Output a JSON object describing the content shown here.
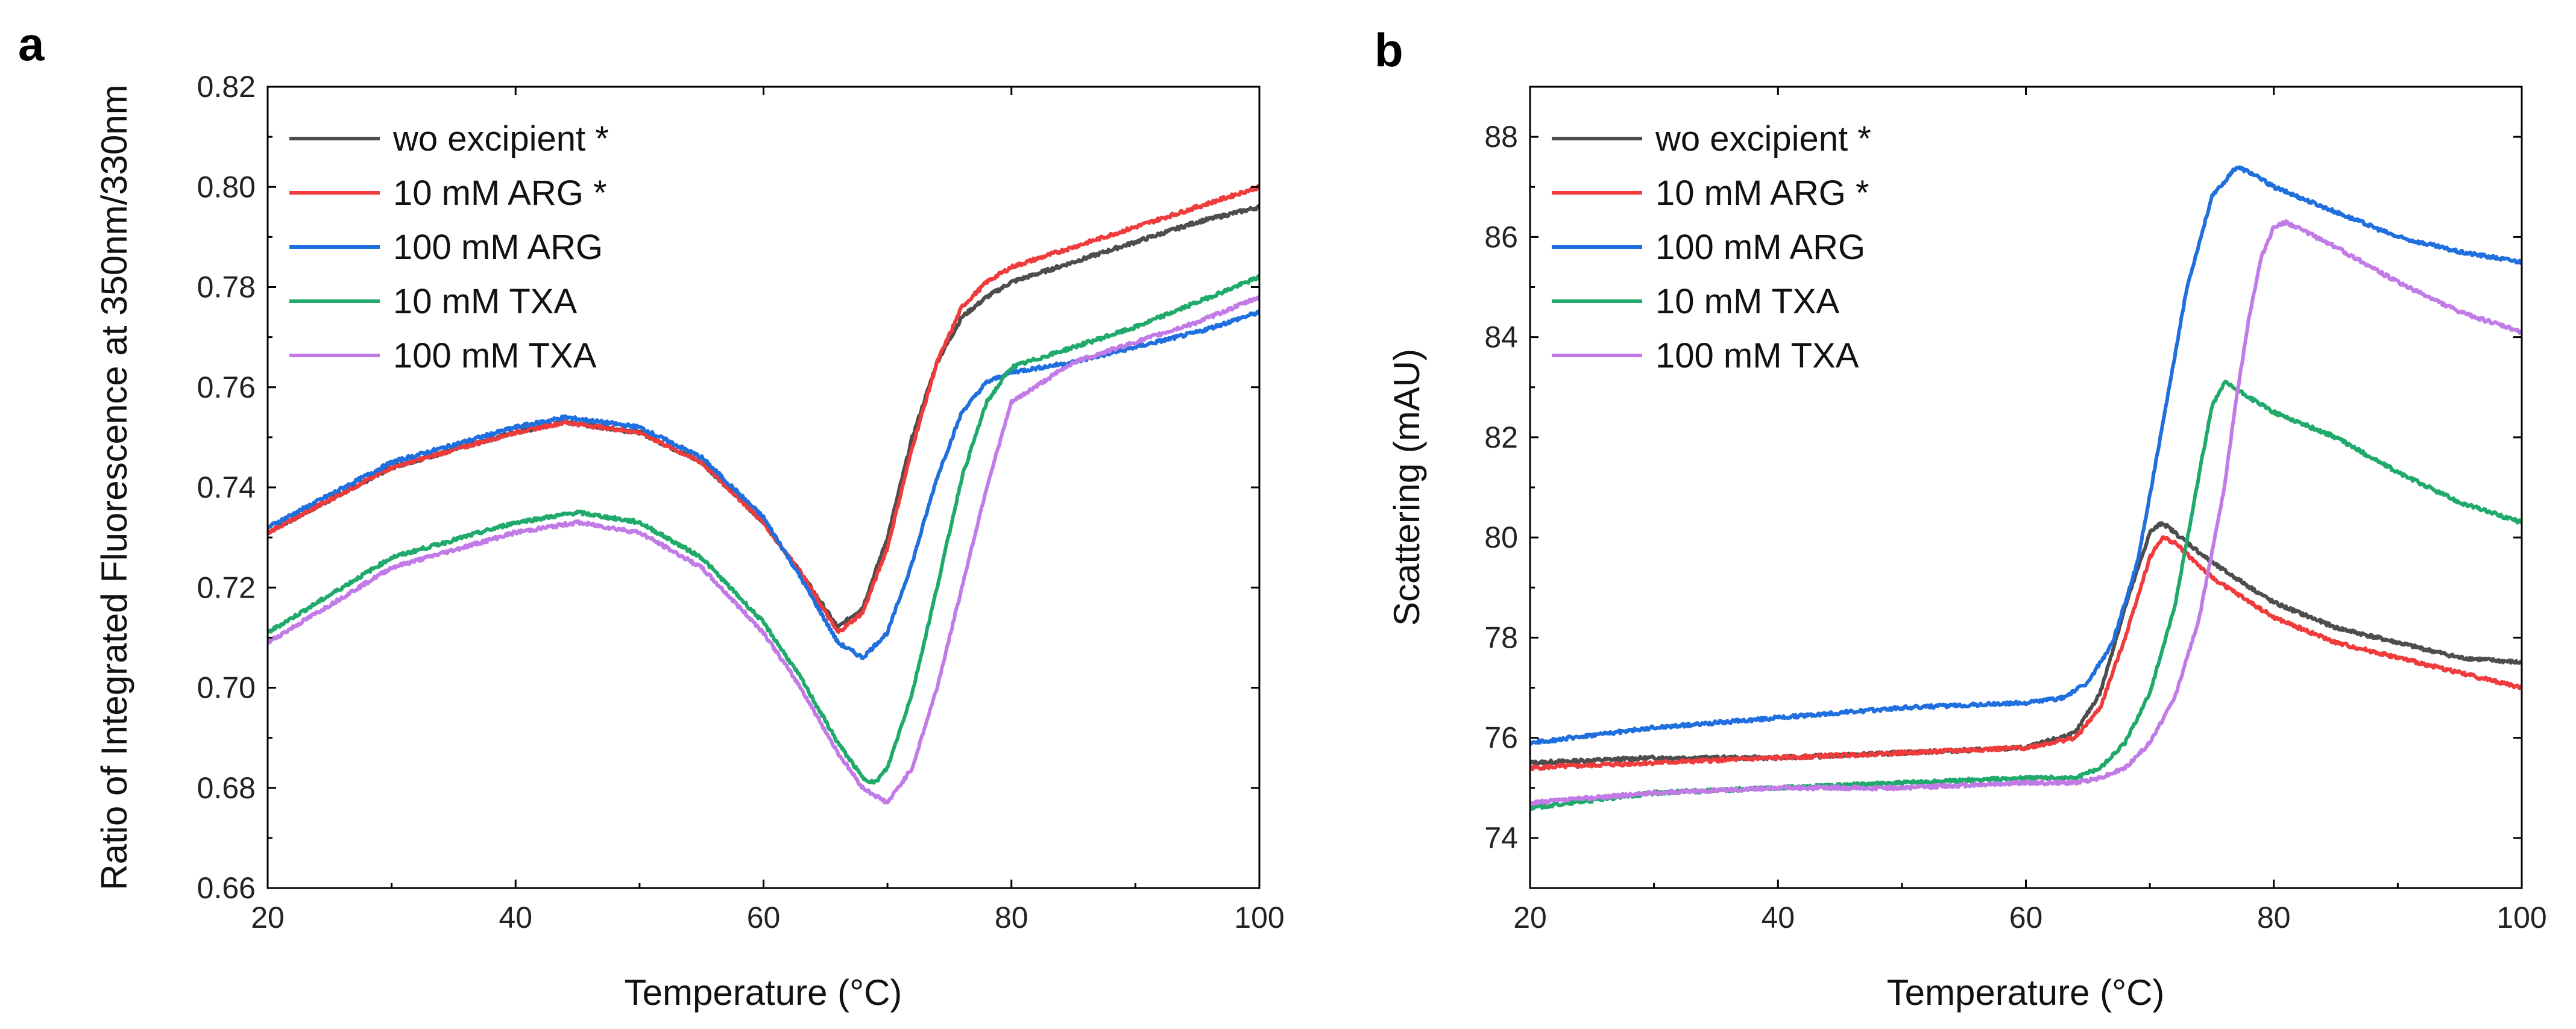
{
  "chart_data": [
    {
      "panel_label": "a",
      "type": "line",
      "title": "",
      "xlabel": "Temperature (°C)",
      "ylabel": "Ratio of Integrated Fluorescence at 350nm/330nm",
      "xlim": [
        20,
        100
      ],
      "ylim": [
        0.66,
        0.82
      ],
      "xticks": [
        20,
        40,
        60,
        80,
        100
      ],
      "xtick_labels": [
        "20",
        "40",
        "60",
        "80",
        "100"
      ],
      "yticks": [
        0.66,
        0.68,
        0.7,
        0.72,
        0.74,
        0.76,
        0.78,
        0.8,
        0.82
      ],
      "ytick_labels": [
        "0.66",
        "0.68",
        "0.70",
        "0.72",
        "0.74",
        "0.76",
        "0.78",
        "0.80",
        "0.82"
      ],
      "legend_position": "top-left",
      "grid": false,
      "series": [
        {
          "name": "wo excipient *",
          "color": "#4d4d4d",
          "x": [
            20,
            30,
            40,
            44,
            50,
            55,
            60,
            63,
            66,
            68,
            70,
            72,
            74,
            76,
            78,
            80,
            85,
            90,
            95,
            100
          ],
          "y": [
            0.731,
            0.744,
            0.751,
            0.753,
            0.751,
            0.745,
            0.733,
            0.723,
            0.712,
            0.716,
            0.73,
            0.75,
            0.765,
            0.774,
            0.778,
            0.781,
            0.785,
            0.789,
            0.793,
            0.796
          ]
        },
        {
          "name": "10 mM ARG *",
          "color": "#ef3b3b",
          "x": [
            20,
            30,
            40,
            44,
            50,
            55,
            60,
            63,
            66,
            68,
            70,
            72,
            74,
            76,
            78,
            80,
            85,
            90,
            95,
            100
          ],
          "y": [
            0.731,
            0.744,
            0.751,
            0.753,
            0.751,
            0.745,
            0.733,
            0.723,
            0.711,
            0.715,
            0.728,
            0.748,
            0.765,
            0.776,
            0.781,
            0.784,
            0.788,
            0.792,
            0.796,
            0.8
          ]
        },
        {
          "name": "100 mM ARG",
          "color": "#1f6fde",
          "x": [
            20,
            30,
            40,
            44,
            50,
            55,
            60,
            63,
            66,
            68,
            70,
            72,
            74,
            76,
            78,
            80,
            85,
            90,
            95,
            100
          ],
          "y": [
            0.732,
            0.745,
            0.752,
            0.754,
            0.752,
            0.746,
            0.734,
            0.722,
            0.709,
            0.706,
            0.711,
            0.725,
            0.742,
            0.755,
            0.761,
            0.763,
            0.765,
            0.768,
            0.771,
            0.775
          ]
        },
        {
          "name": "10 mM TXA",
          "color": "#1faa6b",
          "x": [
            20,
            30,
            40,
            45,
            50,
            55,
            60,
            63,
            66,
            68,
            69,
            70,
            72,
            74,
            76,
            78,
            80,
            85,
            90,
            95,
            100
          ],
          "y": [
            0.711,
            0.726,
            0.733,
            0.735,
            0.733,
            0.726,
            0.713,
            0.702,
            0.689,
            0.682,
            0.681,
            0.684,
            0.699,
            0.72,
            0.742,
            0.757,
            0.764,
            0.768,
            0.772,
            0.777,
            0.782
          ]
        },
        {
          "name": "100 mM TXA",
          "color": "#c27be6",
          "x": [
            20,
            30,
            40,
            45,
            50,
            55,
            60,
            63,
            66,
            68,
            70,
            72,
            74,
            76,
            78,
            80,
            85,
            90,
            95,
            100
          ],
          "y": [
            0.709,
            0.724,
            0.731,
            0.733,
            0.731,
            0.724,
            0.711,
            0.7,
            0.687,
            0.68,
            0.677,
            0.684,
            0.7,
            0.72,
            0.74,
            0.757,
            0.765,
            0.769,
            0.773,
            0.778
          ]
        }
      ]
    },
    {
      "panel_label": "b",
      "type": "line",
      "title": "",
      "xlabel": "Temperature (°C)",
      "ylabel": "Scattering (mAU)",
      "xlim": [
        20,
        100
      ],
      "ylim": [
        73,
        89
      ],
      "xticks": [
        20,
        40,
        60,
        80,
        100
      ],
      "xtick_labels": [
        "20",
        "40",
        "60",
        "80",
        "100"
      ],
      "yticks": [
        74,
        76,
        78,
        80,
        82,
        84,
        86,
        88
      ],
      "ytick_labels": [
        "74",
        "76",
        "78",
        "80",
        "82",
        "84",
        "86",
        "88"
      ],
      "legend_position": "top-left",
      "grid": false,
      "series": [
        {
          "name": "wo excipient *",
          "color": "#4d4d4d",
          "x": [
            20,
            30,
            40,
            50,
            60,
            64,
            66,
            68,
            70,
            71,
            72,
            75,
            80,
            85,
            90,
            95,
            100
          ],
          "y": [
            75.5,
            75.6,
            75.6,
            75.7,
            75.8,
            76.1,
            76.9,
            78.6,
            80.1,
            80.3,
            80.1,
            79.5,
            78.7,
            78.2,
            77.9,
            77.6,
            77.5
          ]
        },
        {
          "name": "10 mM ARG *",
          "color": "#ef3b3b",
          "x": [
            20,
            30,
            40,
            50,
            60,
            64,
            66,
            68,
            70,
            71,
            72,
            75,
            80,
            85,
            90,
            95,
            100
          ],
          "y": [
            75.4,
            75.5,
            75.6,
            75.7,
            75.8,
            76.0,
            76.6,
            78.0,
            79.6,
            80.0,
            79.9,
            79.2,
            78.4,
            77.9,
            77.6,
            77.3,
            77.0
          ]
        },
        {
          "name": "100 mM ARG",
          "color": "#1f6fde",
          "x": [
            20,
            30,
            40,
            50,
            60,
            63,
            65,
            67,
            69,
            71,
            73,
            75,
            77,
            78,
            80,
            85,
            90,
            95,
            100
          ],
          "y": [
            75.9,
            76.2,
            76.4,
            76.6,
            76.7,
            76.8,
            77.1,
            77.9,
            79.5,
            82.2,
            85.0,
            86.8,
            87.4,
            87.3,
            87.0,
            86.5,
            86.0,
            85.7,
            85.5
          ]
        },
        {
          "name": "10 mM TXA",
          "color": "#1faa6b",
          "x": [
            20,
            30,
            40,
            50,
            60,
            64,
            66,
            68,
            70,
            72,
            74,
            75,
            76,
            78,
            80,
            85,
            90,
            95,
            100
          ],
          "y": [
            74.6,
            74.9,
            75.0,
            75.1,
            75.2,
            75.2,
            75.4,
            75.9,
            76.9,
            78.6,
            81.3,
            82.6,
            83.1,
            82.8,
            82.5,
            82.0,
            81.3,
            80.7,
            80.3
          ]
        },
        {
          "name": "100 mM TXA",
          "color": "#c27be6",
          "x": [
            20,
            30,
            40,
            50,
            60,
            64,
            66,
            68,
            70,
            72,
            74,
            76,
            77,
            78,
            79,
            80,
            81,
            85,
            90,
            95,
            100
          ],
          "y": [
            74.7,
            74.9,
            75.0,
            75.0,
            75.1,
            75.1,
            75.2,
            75.4,
            75.9,
            76.8,
            78.4,
            81.0,
            82.8,
            84.4,
            85.6,
            86.2,
            86.3,
            85.8,
            85.1,
            84.5,
            84.1
          ]
        }
      ]
    }
  ]
}
